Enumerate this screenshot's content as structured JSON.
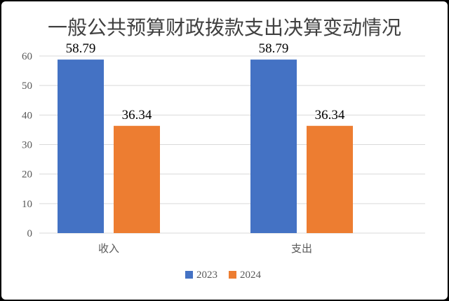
{
  "chart_data": {
    "type": "bar",
    "title": "一般公共预算财政拨款支出决算变动情况",
    "categories": [
      "收入",
      "支出"
    ],
    "series": [
      {
        "name": "2023",
        "values": [
          58.79,
          58.79
        ],
        "color": "#4472C4"
      },
      {
        "name": "2024",
        "values": [
          36.34,
          36.34
        ],
        "color": "#ED7D31"
      }
    ],
    "ylim": [
      0,
      60
    ],
    "yticks": [
      0,
      10,
      20,
      30,
      40,
      50,
      60
    ],
    "xlabel": "",
    "ylabel": "",
    "grid": true,
    "legend": "bottom",
    "data_labels": true
  }
}
